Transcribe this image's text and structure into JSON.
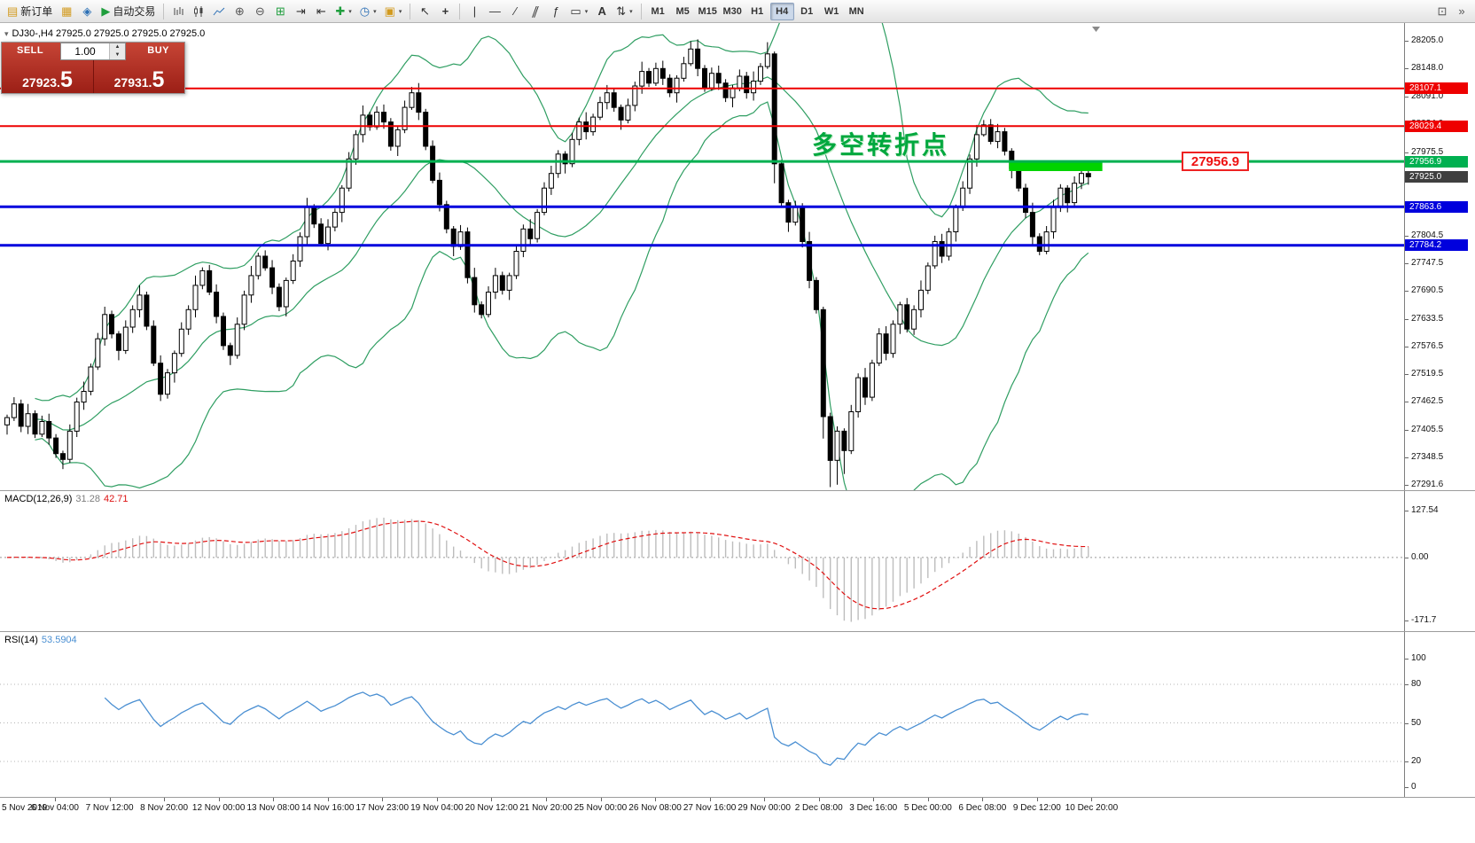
{
  "toolbar": {
    "new_order_label": "新订单",
    "auto_trading_label": "自动交易",
    "timeframes": [
      "M1",
      "M5",
      "M15",
      "M30",
      "H1",
      "H4",
      "D1",
      "W1",
      "MN"
    ],
    "active_timeframe": "H4"
  },
  "icons": {
    "new_order": "▤",
    "market_watch": "▦",
    "navigator": "◈",
    "auto_trading": "▶",
    "zoom_in": "⊕",
    "zoom_out": "⊖",
    "tile_windows": "⊞",
    "auto_scroll": "⇥",
    "chart_shift": "⇤",
    "indicators": "✚",
    "periods": "◷",
    "templates": "▣",
    "cursor": "↖",
    "crosshair": "+",
    "vline": "|",
    "hline": "—",
    "trendline": "∕",
    "channel": "∥",
    "fibonacci": "ƒ",
    "shapes": "▭",
    "text_tool": "A",
    "arrows": "⇅",
    "caret": "▾",
    "spin_up": "▲",
    "spin_down": "▼",
    "new_window": "⊡",
    "overflow": "»",
    "collapse": "▾"
  },
  "symbol_bar": {
    "text": "DJ30-,H4  27925.0 27925.0 27925.0 27925.0"
  },
  "trade_panel": {
    "sell_label": "SELL",
    "buy_label": "BUY",
    "volume": "1.00",
    "sell_price": "27923.5",
    "buy_price": "27931.5"
  },
  "annotation": {
    "text": "多空转折点",
    "color": "#00a83e"
  },
  "callout": {
    "text": "27956.9",
    "price": 27956.9
  },
  "price_axis": {
    "min": 27291.6,
    "max": 28205.0,
    "labels": [
      "28205.0",
      "28148.0",
      "28091.0",
      "28034.0",
      "27975.5",
      "27918.5",
      "27861.5",
      "27804.5",
      "27747.5",
      "27690.5",
      "27633.5",
      "27576.5",
      "27519.5",
      "27462.5",
      "27405.5",
      "27348.5",
      "27291.6"
    ]
  },
  "hlines": [
    {
      "price": 28107.1,
      "label": "28107.1",
      "color": "#ee0000",
      "width": 2
    },
    {
      "price": 28029.4,
      "label": "28029.4",
      "color": "#ee0000",
      "width": 2
    },
    {
      "price": 27956.9,
      "label": "27956.9",
      "color": "#00b050",
      "width": 3
    },
    {
      "price": 27863.6,
      "label": "27863.6",
      "color": "#0000dd",
      "width": 3
    },
    {
      "price": 27784.2,
      "label": "27784.2",
      "color": "#0000dd",
      "width": 3
    }
  ],
  "bid_badge": {
    "price": 27925.0,
    "label": "27925.0",
    "bg": "#3f3f3f"
  },
  "highlight_rect": {
    "bar_start": 144,
    "bar_end": 157,
    "price_top": 27958,
    "price_bottom": 27937,
    "color": "#00d400"
  },
  "chart_data": {
    "type": "candlestick",
    "symbol": "DJ30-",
    "timeframe": "H4",
    "first_open": 27415,
    "closes": [
      27430,
      27458,
      27412,
      27438,
      27396,
      27422,
      27388,
      27356,
      27344,
      27402,
      27462,
      27484,
      27534,
      27592,
      27642,
      27602,
      27568,
      27616,
      27652,
      27682,
      27618,
      27542,
      27478,
      27522,
      27562,
      27612,
      27652,
      27702,
      27732,
      27688,
      27638,
      27578,
      27558,
      27622,
      27682,
      27722,
      27762,
      27738,
      27698,
      27658,
      27712,
      27752,
      27802,
      27862,
      27828,
      27788,
      27822,
      27852,
      27902,
      27962,
      28012,
      28052,
      28028,
      28058,
      28038,
      27988,
      28022,
      28068,
      28098,
      28058,
      27988,
      27918,
      27868,
      27818,
      27782,
      27812,
      27718,
      27662,
      27642,
      27688,
      27722,
      27692,
      27722,
      27772,
      27818,
      27798,
      27852,
      27902,
      27932,
      27972,
      27952,
      28002,
      28038,
      28018,
      28048,
      28078,
      28098,
      28068,
      28042,
      28072,
      28112,
      28142,
      28118,
      28148,
      28128,
      28098,
      28128,
      28158,
      28188,
      28148,
      28108,
      28138,
      28118,
      28088,
      28108,
      28132,
      28098,
      28122,
      28152,
      28178,
      27952,
      27872,
      27832,
      27862,
      27792,
      27712,
      27652,
      27432,
      27342,
      27402,
      27362,
      27442,
      27512,
      27472,
      27542,
      27602,
      27562,
      27622,
      27662,
      27612,
      27652,
      27692,
      27742,
      27792,
      27762,
      27812,
      27862,
      27902,
      27962,
      28012,
      28032,
      27998,
      28018,
      27978,
      27942,
      27902,
      27852,
      27802,
      27772,
      27812,
      27862,
      27902,
      27872,
      27912,
      27932,
      27925
    ],
    "wick_pattern": [
      6,
      14,
      9,
      20,
      7,
      12,
      16,
      8
    ],
    "wick_overrides": {
      "58": [
        12,
        5
      ],
      "98": [
        16,
        5
      ],
      "109": [
        24,
        5
      ],
      "110": [
        5,
        40
      ],
      "117": [
        6,
        45
      ],
      "118": [
        8,
        55
      ],
      "119": [
        10,
        50
      ],
      "120": [
        6,
        48
      ],
      "140": [
        10,
        4
      ]
    },
    "bollinger": {
      "period": 20,
      "deviation": 2,
      "color": "#2f9e62"
    },
    "candle_up_color": "#ffffff",
    "candle_down_color": "#000000"
  },
  "macd_panel": {
    "title": "MACD(12,26,9)",
    "main_value": "31.28",
    "signal_value": "42.71",
    "axis_labels": [
      "127.54",
      "0.00",
      "-171.7"
    ],
    "range_max": 127.54,
    "range_min": -171.7,
    "hist_color": "#bdbdbd",
    "signal_color": "#e01010"
  },
  "rsi_panel": {
    "title": "RSI(14)",
    "value": "53.5904",
    "axis_labels": [
      "100",
      "80",
      "50",
      "20",
      "0"
    ],
    "levels": [
      80,
      50,
      20
    ],
    "line_color": "#4a8fd2"
  },
  "time_axis": {
    "labels": [
      "5 Nov 2019",
      "6 Nov 04:00",
      "7 Nov 12:00",
      "8 Nov 20:00",
      "12 Nov 00:00",
      "13 Nov 08:00",
      "14 Nov 16:00",
      "17 Nov 23:00",
      "19 Nov 04:00",
      "20 Nov 12:00",
      "21 Nov 20:00",
      "25 Nov 00:00",
      "26 Nov 08:00",
      "27 Nov 16:00",
      "29 Nov 00:00",
      "2 Dec 08:00",
      "3 Dec 16:00",
      "5 Dec 00:00",
      "6 Dec 08:00",
      "9 Dec 12:00",
      "10 Dec 20:00"
    ]
  }
}
